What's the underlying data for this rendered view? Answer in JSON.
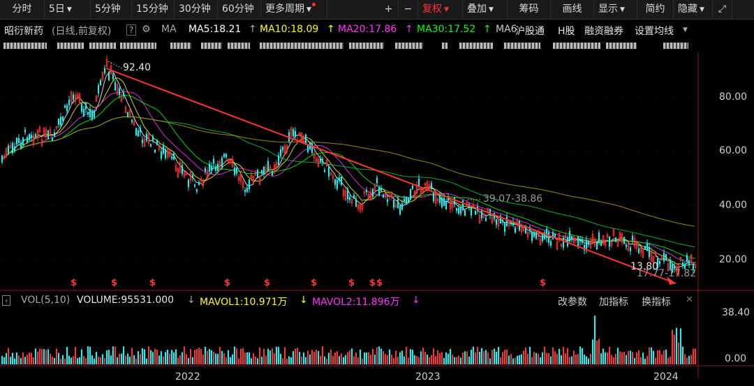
{
  "toolbar": {
    "periods": [
      "分时",
      "5日",
      "5分钟",
      "15分钟",
      "30分钟",
      "60分钟",
      "更多周期"
    ],
    "tools": [
      "+",
      "−",
      "复权",
      "叠加",
      "筹码",
      "画线",
      "显示",
      "简约",
      "隐藏"
    ]
  },
  "header": {
    "stock": "昭衍新药",
    "mode": "(日线,前复权)",
    "help": "?",
    "ma_label": "MA",
    "ma5": "MA5:18.21",
    "ma10": "MA10:18.09",
    "ma20": "MA20:17.86",
    "ma30": "MA30:17.52",
    "ma_more": "MA6",
    "links": [
      "沪股通",
      "H股",
      "融资融券",
      "设置均线"
    ]
  },
  "chart_data": {
    "type": "candlestick",
    "price_ticks": [
      "80.00",
      "60.00",
      "40.00",
      "20.00"
    ],
    "annotations": {
      "high": "92.40",
      "low": "13.80",
      "range": "39.07-38.86",
      "last_range": "17.77-17.82"
    },
    "volume_ticks": [
      "38.40",
      "0.00"
    ],
    "years": [
      "2022",
      "2023",
      "2024"
    ]
  },
  "volume": {
    "title": "VOL(5,10)",
    "volume": "VOLUME:95531.000",
    "mavol1": "MAVOL1:10.971万",
    "mavol2": "MAVOL2:11.896万",
    "buttons": [
      "改参数",
      "加指标",
      "换指标"
    ]
  },
  "colors": {
    "up": "#ff3333",
    "down": "#00ffff",
    "ma5": "#ffffff",
    "ma10": "#ffff00",
    "ma20": "#ff33ff",
    "ma30": "#00ff00"
  }
}
